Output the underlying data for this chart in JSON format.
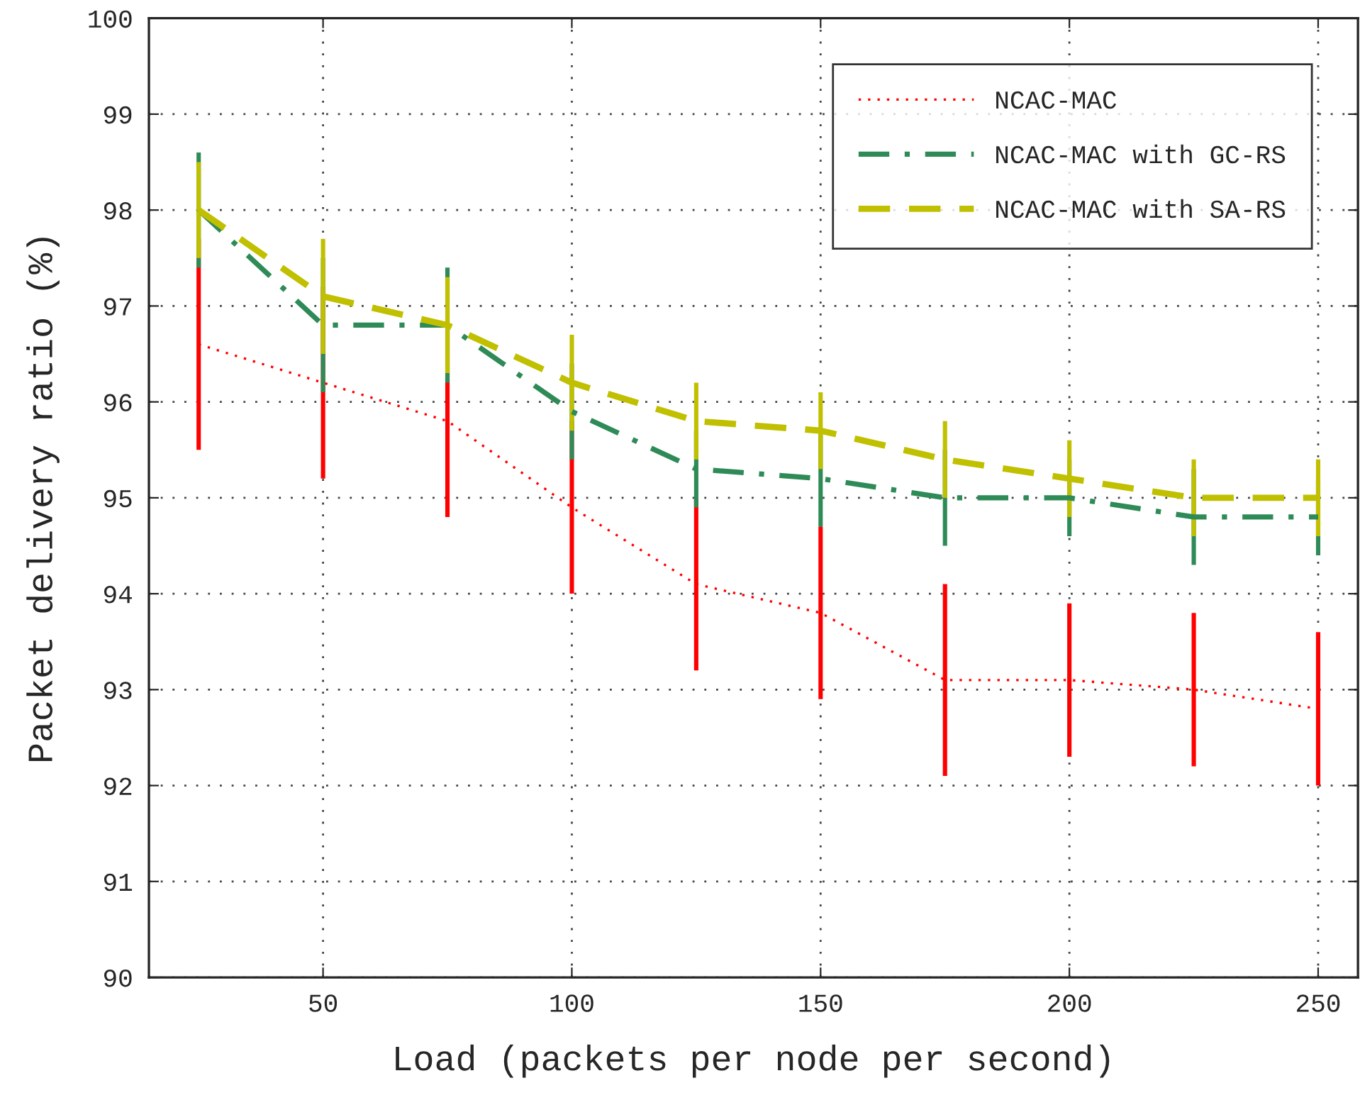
{
  "chart_data": {
    "type": "line",
    "xlabel": "Load (packets per node per second)",
    "ylabel": "Packet delivery ratio (%)",
    "x": [
      25,
      50,
      75,
      100,
      125,
      150,
      175,
      200,
      225,
      250
    ],
    "series": [
      {
        "name": "NCAC-MAC",
        "color": "#ff0000",
        "line_style": "dotted",
        "values": [
          96.6,
          96.2,
          95.8,
          94.9,
          94.1,
          93.8,
          93.1,
          93.1,
          93.0,
          92.8
        ],
        "errors": [
          1.1,
          1.0,
          1.0,
          0.9,
          0.9,
          0.9,
          1.0,
          0.8,
          0.8,
          0.8
        ]
      },
      {
        "name": "NCAC-MAC with GC-RS",
        "color": "#2e8b57",
        "line_style": "dashdot",
        "values": [
          98.0,
          96.8,
          96.8,
          95.9,
          95.3,
          95.2,
          95.0,
          95.0,
          94.8,
          94.8
        ],
        "errors": [
          0.6,
          0.7,
          0.6,
          0.5,
          0.4,
          0.5,
          0.5,
          0.4,
          0.5,
          0.4
        ]
      },
      {
        "name": "NCAC-MAC with SA-RS",
        "color": "#c0c000",
        "line_style": "dashed",
        "values": [
          98.0,
          97.1,
          96.8,
          96.2,
          95.8,
          95.7,
          95.4,
          95.2,
          95.0,
          95.0
        ],
        "errors": [
          0.5,
          0.6,
          0.5,
          0.5,
          0.4,
          0.4,
          0.4,
          0.4,
          0.4,
          0.4
        ]
      }
    ],
    "xlim": [
      15,
      258
    ],
    "xticks": [
      50,
      100,
      150,
      200,
      250
    ],
    "ylim": [
      90,
      100
    ],
    "yticks": [
      90,
      91,
      92,
      93,
      94,
      95,
      96,
      97,
      98,
      99,
      100
    ],
    "grid": true,
    "legend": "top right"
  }
}
